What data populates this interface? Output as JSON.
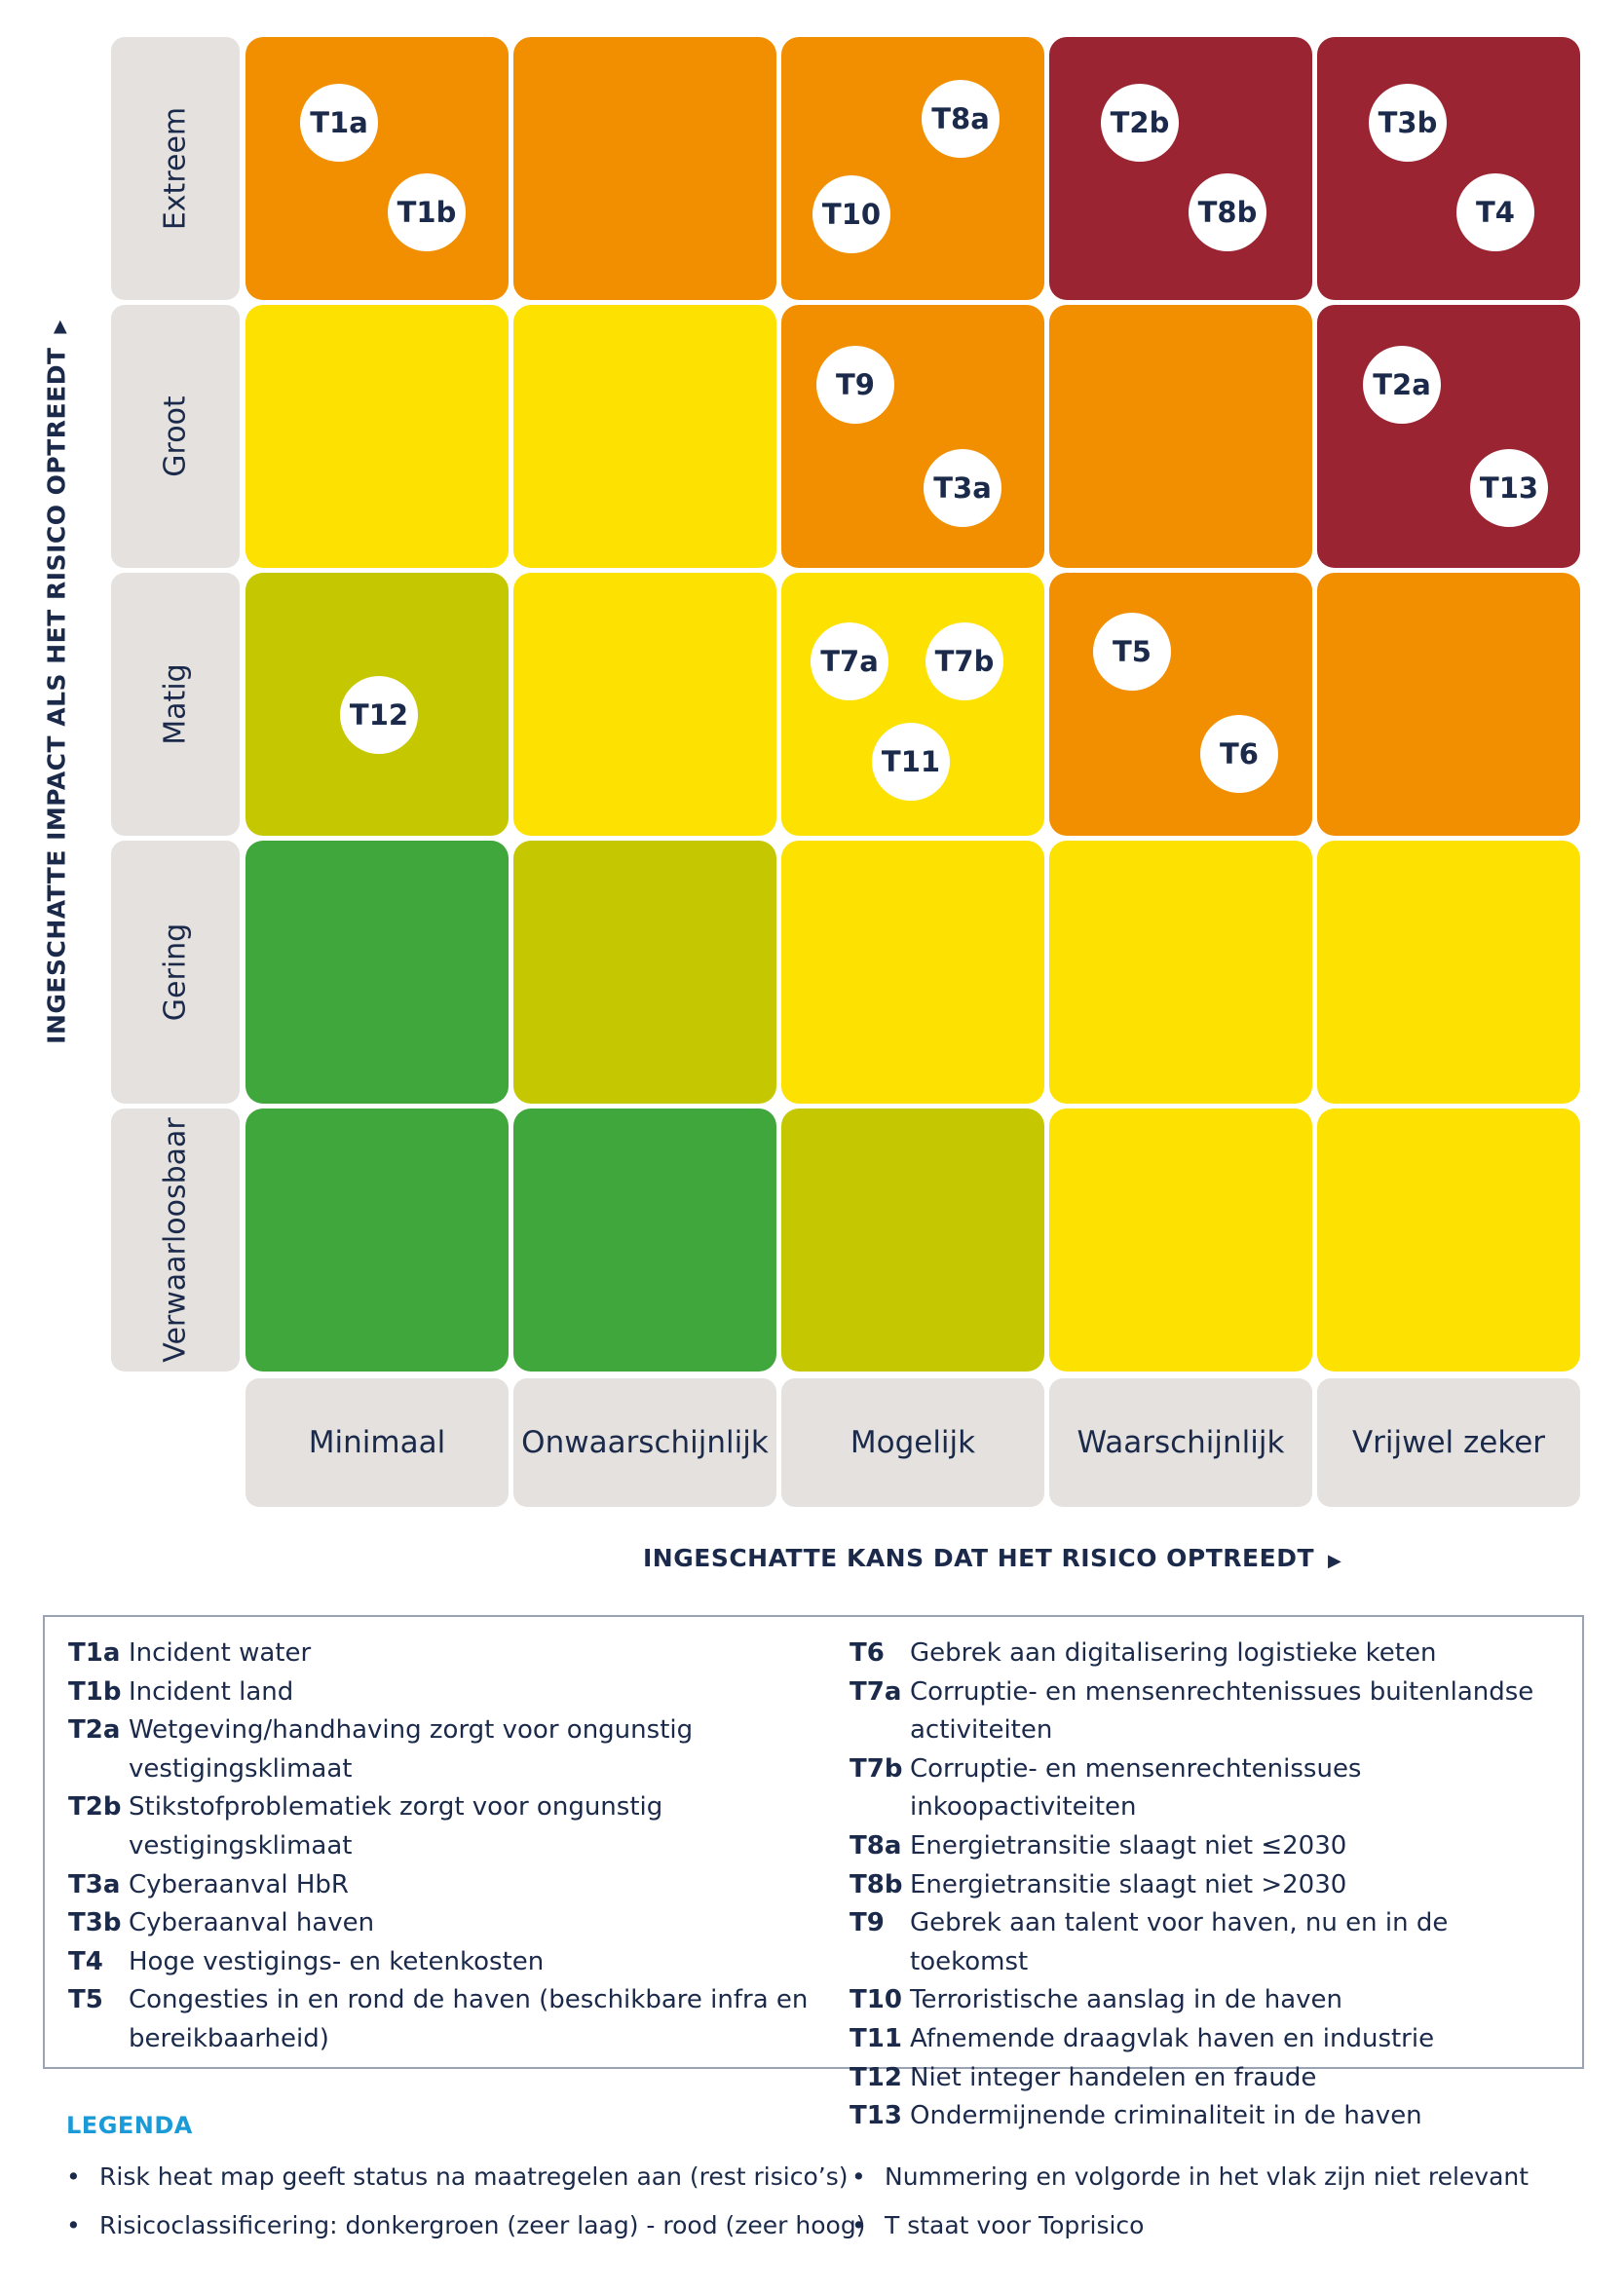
{
  "chart_data": {
    "type": "heatmap",
    "y_axis_label": "INGESCHATTE IMPACT ALS HET RISICO OPTREEDT",
    "x_axis_label": "INGESCHATTE KANS DAT HET RISICO OPTREEDT",
    "impact_levels": [
      "Extreem",
      "Groot",
      "Matig",
      "Gering",
      "Verwaarloosbaar"
    ],
    "likelihood_levels": [
      "Minimaal",
      "Onwaarschijnlijk",
      "Mogelijk",
      "Waarschijnlijk",
      "Vrijwel zeker"
    ],
    "cell_colors": [
      [
        "#f28f00",
        "#f28f00",
        "#f28f00",
        "#9b2432",
        "#9b2432"
      ],
      [
        "#fde100",
        "#fde100",
        "#f28f00",
        "#f28f00",
        "#9b2432"
      ],
      [
        "#c5c800",
        "#fde100",
        "#fde100",
        "#f28f00",
        "#f28f00"
      ],
      [
        "#3fa73b",
        "#c5c800",
        "#fde100",
        "#fde100",
        "#fde100"
      ],
      [
        "#3fa73b",
        "#3fa73b",
        "#c5c800",
        "#fde100",
        "#fde100"
      ]
    ],
    "risks": [
      {
        "id": "T1a",
        "impact": "Extreem",
        "likelihood": "Minimaal"
      },
      {
        "id": "T1b",
        "impact": "Extreem",
        "likelihood": "Minimaal"
      },
      {
        "id": "T8a",
        "impact": "Extreem",
        "likelihood": "Mogelijk"
      },
      {
        "id": "T10",
        "impact": "Extreem",
        "likelihood": "Mogelijk"
      },
      {
        "id": "T2b",
        "impact": "Extreem",
        "likelihood": "Waarschijnlijk"
      },
      {
        "id": "T8b",
        "impact": "Extreem",
        "likelihood": "Waarschijnlijk"
      },
      {
        "id": "T3b",
        "impact": "Extreem",
        "likelihood": "Vrijwel zeker"
      },
      {
        "id": "T4",
        "impact": "Extreem",
        "likelihood": "Vrijwel zeker"
      },
      {
        "id": "T9",
        "impact": "Groot",
        "likelihood": "Mogelijk"
      },
      {
        "id": "T3a",
        "impact": "Groot",
        "likelihood": "Mogelijk"
      },
      {
        "id": "T2a",
        "impact": "Groot",
        "likelihood": "Vrijwel zeker"
      },
      {
        "id": "T13",
        "impact": "Groot",
        "likelihood": "Vrijwel zeker"
      },
      {
        "id": "T12",
        "impact": "Matig",
        "likelihood": "Minimaal"
      },
      {
        "id": "T7a",
        "impact": "Matig",
        "likelihood": "Mogelijk"
      },
      {
        "id": "T7b",
        "impact": "Matig",
        "likelihood": "Mogelijk"
      },
      {
        "id": "T11",
        "impact": "Matig",
        "likelihood": "Mogelijk"
      },
      {
        "id": "T5",
        "impact": "Matig",
        "likelihood": "Waarschijnlijk"
      },
      {
        "id": "T6",
        "impact": "Matig",
        "likelihood": "Waarschijnlijk"
      }
    ]
  },
  "risk_list": [
    [
      {
        "id": "T1a",
        "text": "Incident water"
      },
      {
        "id": "T1b",
        "text": "Incident land"
      },
      {
        "id": "T2a",
        "text": "Wetgeving/handhaving zorgt voor ongunstig vestigingsklimaat"
      },
      {
        "id": "T2b",
        "text": "Stikstofproblematiek zorgt voor ongunstig vestigingsklimaat"
      },
      {
        "id": "T3a",
        "text": "Cyberaanval HbR"
      },
      {
        "id": "T3b",
        "text": "Cyberaanval haven"
      },
      {
        "id": "T4",
        "text": "Hoge vestigings- en ketenkosten"
      },
      {
        "id": "T5",
        "text": "Congesties in en rond de haven (beschikbare infra en bereikbaarheid)"
      }
    ],
    [
      {
        "id": "T6",
        "text": "Gebrek aan digitalisering logistieke keten"
      },
      {
        "id": "T7a",
        "text": "Corruptie- en mensenrechtenissues buitenlandse activiteiten"
      },
      {
        "id": "T7b",
        "text": "Corruptie- en mensenrechtenissues inkoopactiviteiten"
      },
      {
        "id": "T8a",
        "text": "Energietransitie slaagt niet ≤2030"
      },
      {
        "id": "T8b",
        "text": "Energietransitie slaagt niet >2030"
      },
      {
        "id": "T9",
        "text": "Gebrek aan talent voor haven, nu en in de toekomst"
      },
      {
        "id": "T10",
        "text": "Terroristische aanslag in de haven"
      },
      {
        "id": "T11",
        "text": "Afnemende draagvlak haven en industrie"
      },
      {
        "id": "T12",
        "text": "Niet integer handelen en fraude"
      },
      {
        "id": "T13",
        "text": "Ondermijnende criminaliteit in de haven"
      }
    ]
  ],
  "legend": {
    "title": "LEGENDA",
    "bullet": "•",
    "notes": [
      "Risk heat map geeft status na maatregelen aan (rest risico’s)",
      "Nummering en volgorde in het vlak zijn niet relevant",
      "Risicoclassificering: donkergroen (zeer laag) - rood (zeer hoog)",
      "T staat voor Toprisico"
    ]
  },
  "axis_marker": "▶"
}
